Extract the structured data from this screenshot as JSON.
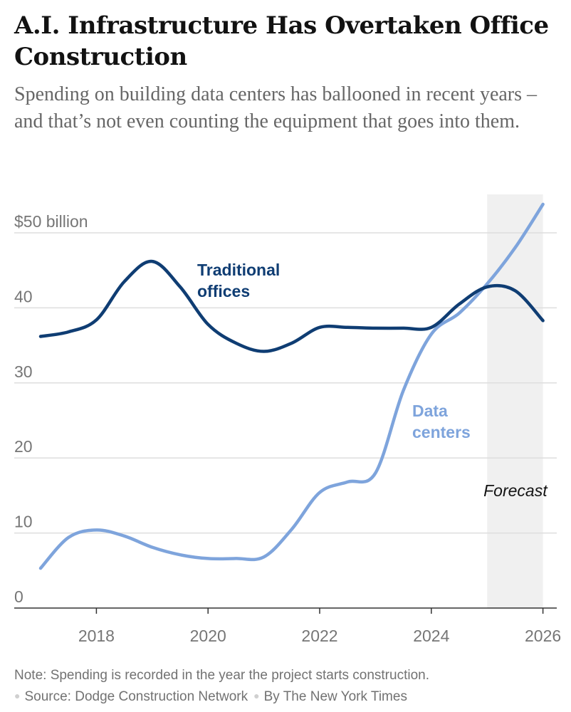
{
  "header": {
    "title": "A.I. Infrastructure Has Overtaken Office Construction",
    "subtitle": "Spending on building data centers has ballooned in recent years – and that’s not even counting the equipment that goes into them."
  },
  "chart_data": {
    "type": "line",
    "title": "A.I. Infrastructure Has Overtaken Office Construction",
    "xlabel": "",
    "ylabel": "",
    "xlim": [
      2017,
      2026
    ],
    "ylim": [
      0,
      55
    ],
    "x_ticks": [
      2018,
      2020,
      2022,
      2024,
      2026
    ],
    "x_tick_labels": [
      "2018",
      "2020",
      "2022",
      "2024",
      "2026"
    ],
    "y_ticks": [
      0,
      10,
      20,
      30,
      40,
      50
    ],
    "y_tick_labels": [
      "0",
      "10",
      "20",
      "30",
      "40",
      "$50 billion"
    ],
    "grid": true,
    "forecast_region": {
      "start": 2025,
      "end": 2026,
      "label": "Forecast"
    },
    "series": [
      {
        "name": "Traditional offices",
        "label_lines": [
          "Traditional",
          "offices"
        ],
        "color": "#0f3d73",
        "x": [
          2017,
          2017.5,
          2018,
          2018.5,
          2019,
          2019.5,
          2020,
          2020.5,
          2021,
          2021.5,
          2022,
          2022.5,
          2023,
          2023.5,
          2024,
          2024.5,
          2025,
          2025.5,
          2026
        ],
        "values": [
          36.2,
          36.8,
          38.4,
          43.5,
          46.2,
          42.8,
          37.8,
          35.3,
          34.2,
          35.3,
          37.4,
          37.4,
          37.3,
          37.3,
          37.4,
          40.5,
          42.8,
          42.3,
          38.3
        ]
      },
      {
        "name": "Data centers",
        "label_lines": [
          "Data",
          "centers"
        ],
        "color": "#7ea4dc",
        "x": [
          2017,
          2017.5,
          2018,
          2018.5,
          2019,
          2019.5,
          2020,
          2020.5,
          2021,
          2021.5,
          2022,
          2022.5,
          2023,
          2023.5,
          2024,
          2024.5,
          2025,
          2025.5,
          2026
        ],
        "values": [
          5.3,
          9.4,
          10.4,
          9.6,
          8.1,
          7.1,
          6.6,
          6.6,
          6.8,
          10.5,
          15.4,
          16.8,
          18.0,
          29.0,
          36.5,
          39.3,
          43.2,
          48.0,
          53.8
        ]
      }
    ]
  },
  "footer": {
    "note": "Note: Spending is recorded in the year the project starts construction.",
    "source": "Source: Dodge Construction Network",
    "credit": "By The New York Times"
  }
}
